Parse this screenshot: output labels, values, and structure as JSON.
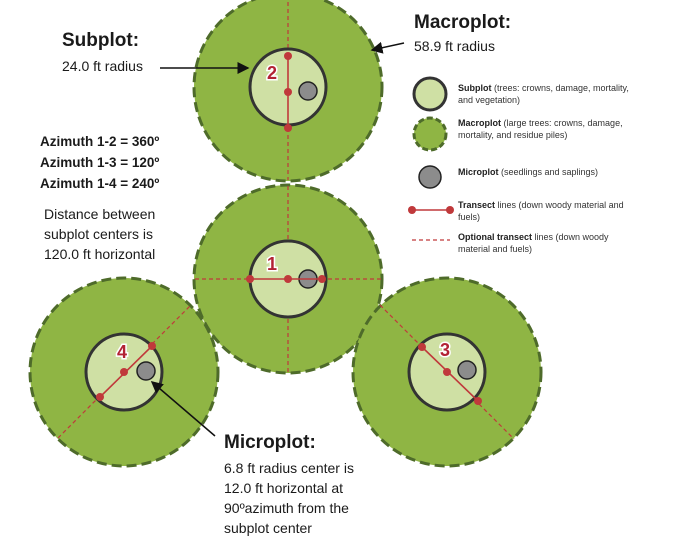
{
  "labels": {
    "subplot_title": "Subplot:",
    "subplot_radius": "24.0 ft radius",
    "macroplot_title": "Macroplot:",
    "macroplot_radius": "58.9 ft radius",
    "microplot_title": "Microplot:",
    "microplot_desc": [
      "6.8 ft radius center is",
      "12.0 ft horizontal at",
      "90ºazimuth from the",
      "subplot center"
    ],
    "azimuths": [
      "Azimuth 1-2 = 360º",
      "Azimuth 1-3 = 120º",
      "Azimuth 1-4 = 240º"
    ],
    "distance": [
      "Distance between",
      "subplot centers is",
      "120.0 ft horizontal"
    ]
  },
  "plots": [
    "1",
    "2",
    "3",
    "4"
  ],
  "legend": [
    {
      "icon": "subplot-icon",
      "bold": "Subplot",
      "text": " (trees: crowns, damage, mortality, and vegetation)"
    },
    {
      "icon": "macroplot-icon",
      "bold": "Macroplot",
      "text": " (large trees: crowns, damage, mortality, and residue piles)"
    },
    {
      "icon": "microplot-icon",
      "bold": "Microplot",
      "text": " (seedlings and saplings)"
    },
    {
      "icon": "transect-icon",
      "bold": "Transect",
      "text": " lines (down woody material and fuels)"
    },
    {
      "icon": "optional-transect-icon",
      "bold": "Optional transect",
      "text": " lines (down woody material and fuels)"
    }
  ],
  "colors": {
    "macroplot_fill": "#8fb544",
    "macroplot_border": "#4e6b2a",
    "subplot_fill": "#cfe0a4",
    "subplot_border": "#333333",
    "microplot_fill": "#8c8c8c",
    "transect": "#c0393b",
    "plot_number": "#b22234"
  }
}
